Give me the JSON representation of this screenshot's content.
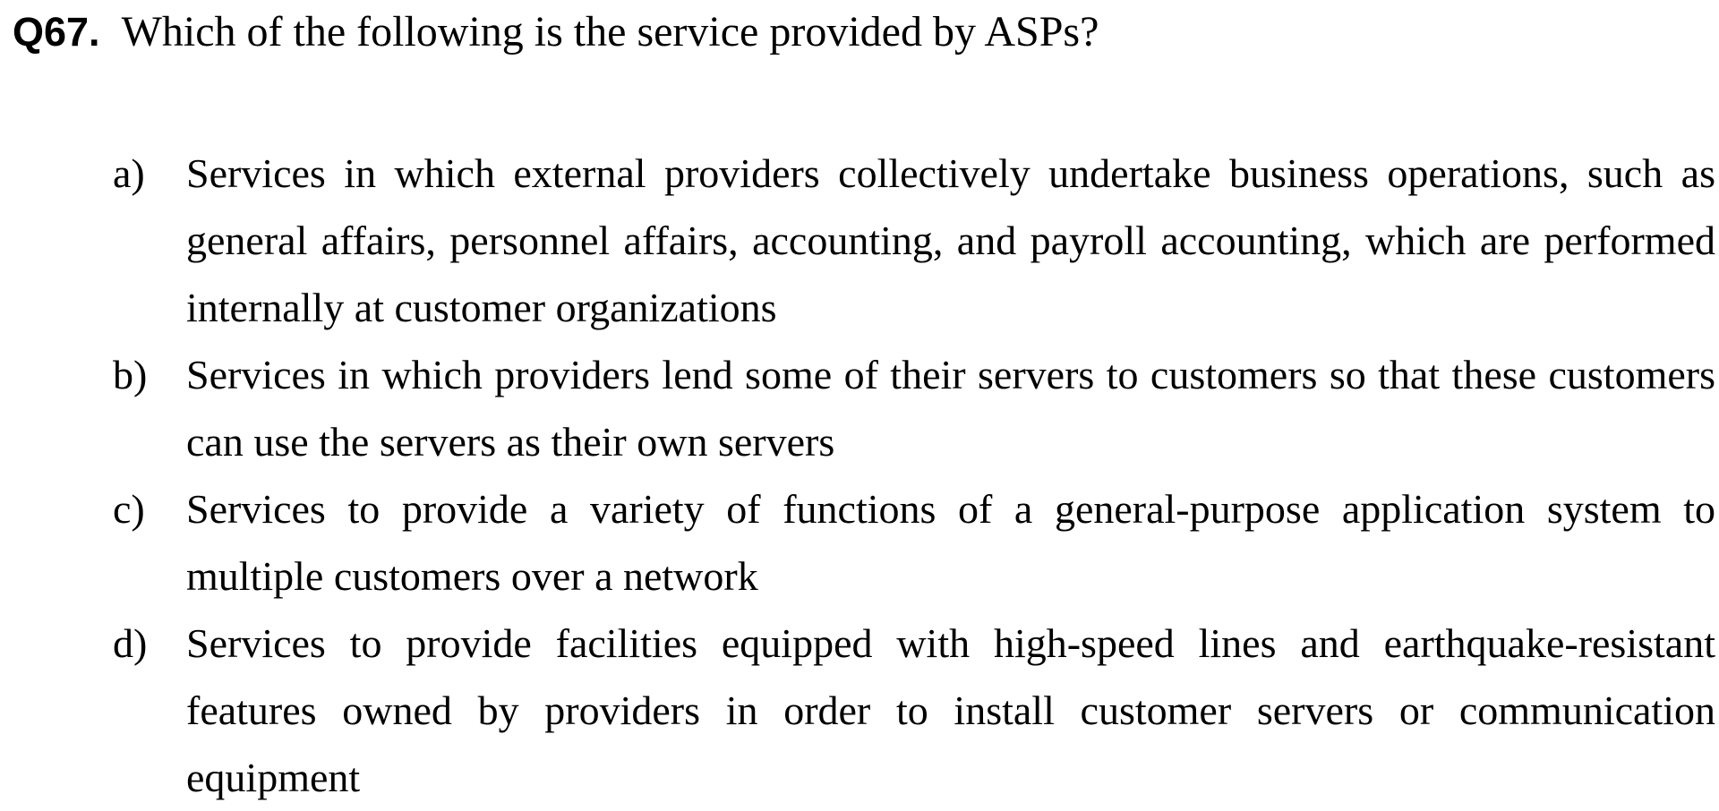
{
  "question": {
    "number": "Q67.",
    "text": "Which of the following is the service provided by ASPs?"
  },
  "options": [
    {
      "letter": "a)",
      "text": "Services in which external providers collectively undertake business operations, such as general affairs, personnel affairs, accounting, and payroll accounting, which are performed internally at customer organizations"
    },
    {
      "letter": "b)",
      "text": "Services in which providers lend some of their servers to customers so that these customers can use the servers as their own servers"
    },
    {
      "letter": "c)",
      "text": "Services to provide a variety of functions of a general-purpose application system to multiple customers over a network"
    },
    {
      "letter": "d)",
      "text": "Services to provide facilities equipped with high-speed lines and earthquake-resistant features owned by providers in order to install customer servers or communication equipment"
    }
  ]
}
